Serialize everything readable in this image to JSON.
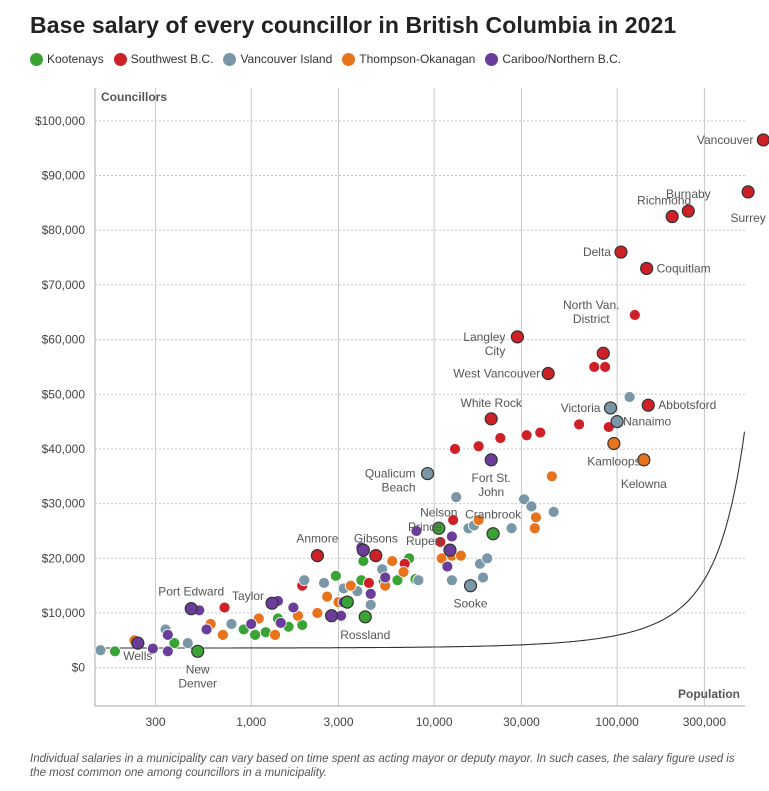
{
  "title": "Base salary of every councillor in British Columbia in 2021",
  "footnote": "Individual salaries in a municipality can vary based on time spent as acting mayor or deputy mayor. In such cases, the salary figure used is the most common one among councillors in a municipality.",
  "legend": [
    {
      "name": "Kootenays",
      "color": "#3aa335"
    },
    {
      "name": "Southwest B.C.",
      "color": "#cf2027"
    },
    {
      "name": "Vancouver Island",
      "color": "#7a97a8"
    },
    {
      "name": "Thompson-Okanagan",
      "color": "#e8731d"
    },
    {
      "name": "Cariboo/Northern B.C.",
      "color": "#6a3d9a"
    }
  ],
  "chart_data": {
    "type": "scatter",
    "title": "Base salary of every councillor in British Columbia in 2021",
    "xlabel": "Population",
    "ylabel": "Councillors",
    "xscale": "log",
    "xlim": [
      140,
      500000
    ],
    "ylim": [
      -7000,
      106000
    ],
    "xticks": [
      300,
      1000,
      3000,
      10000,
      30000,
      100000,
      300000
    ],
    "xtick_labels": [
      "300",
      "1,000",
      "3,000",
      "10,000",
      "30,000",
      "100,000",
      "300,000"
    ],
    "yticks": [
      0,
      10000,
      20000,
      30000,
      40000,
      50000,
      60000,
      70000,
      80000,
      90000,
      100000
    ],
    "ytick_labels": [
      "$0",
      "$10,000",
      "$20,000",
      "$30,000",
      "$40,000",
      "$50,000",
      "$60,000",
      "$70,000",
      "$80,000",
      "$90,000",
      "$100,000"
    ],
    "grid": true,
    "legend_position": "top",
    "series_keys": [
      "Kootenays",
      "Southwest B.C.",
      "Vancouver Island",
      "Thompson-Okanagan",
      "Cariboo/Northern B.C."
    ],
    "points": [
      {
        "r": 4,
        "x": 2750,
        "y": 9500,
        "k": 1
      },
      {
        "r": 4,
        "x": 4100,
        "y": 21500,
        "k": 1
      },
      {
        "r": 0,
        "x": 3350,
        "y": 12000,
        "k": 1
      },
      {
        "r": 0,
        "x": 380,
        "y": 4500,
        "k": 0
      },
      {
        "r": 0,
        "x": 510,
        "y": 3000,
        "k": 1,
        "label": "New\nDenver"
      },
      {
        "r": 0,
        "x": 180,
        "y": 3000,
        "k": 0
      },
      {
        "r": 0,
        "x": 910,
        "y": 7000,
        "k": 0
      },
      {
        "r": 0,
        "x": 1050,
        "y": 6000,
        "k": 0
      },
      {
        "r": 0,
        "x": 1200,
        "y": 6500,
        "k": 0
      },
      {
        "r": 0,
        "x": 1400,
        "y": 9000,
        "k": 0
      },
      {
        "r": 0,
        "x": 1600,
        "y": 7500,
        "k": 0
      },
      {
        "r": 0,
        "x": 1900,
        "y": 7800,
        "k": 0
      },
      {
        "r": 0,
        "x": 2900,
        "y": 16800,
        "k": 0
      },
      {
        "r": 0,
        "x": 4000,
        "y": 16000,
        "k": 0
      },
      {
        "r": 0,
        "x": 4100,
        "y": 19500,
        "k": 0
      },
      {
        "r": 0,
        "x": 4200,
        "y": 9300,
        "k": 1,
        "label": "Rossland"
      },
      {
        "r": 0,
        "x": 4800,
        "y": 20500,
        "k": 0
      },
      {
        "r": 0,
        "x": 5300,
        "y": 15800,
        "k": 0
      },
      {
        "r": 0,
        "x": 6300,
        "y": 16000,
        "k": 0
      },
      {
        "r": 0,
        "x": 7300,
        "y": 20000,
        "k": 0
      },
      {
        "r": 0,
        "x": 7900,
        "y": 16200,
        "k": 0
      },
      {
        "r": 0,
        "x": 10600,
        "y": 25500,
        "k": 1,
        "label": "Nelson"
      },
      {
        "r": 0,
        "x": 21000,
        "y": 24500,
        "k": 1,
        "label": "Cranbrook"
      },
      {
        "r": 1,
        "x": 715,
        "y": 11000,
        "k": 0
      },
      {
        "r": 1,
        "x": 1900,
        "y": 15000,
        "k": 0
      },
      {
        "r": 1,
        "x": 2300,
        "y": 20500,
        "k": 1,
        "label": "Anmore"
      },
      {
        "r": 1,
        "x": 4400,
        "y": 15500,
        "k": 0
      },
      {
        "r": 1,
        "x": 4800,
        "y": 20500,
        "k": 1,
        "label": "Gibsons"
      },
      {
        "r": 1,
        "x": 6900,
        "y": 19000,
        "k": 0
      },
      {
        "r": 1,
        "x": 10800,
        "y": 23000,
        "k": 0
      },
      {
        "r": 1,
        "x": 12700,
        "y": 27000,
        "k": 0
      },
      {
        "r": 1,
        "x": 13000,
        "y": 40000,
        "k": 0
      },
      {
        "r": 1,
        "x": 17500,
        "y": 40500,
        "k": 0
      },
      {
        "r": 1,
        "x": 20500,
        "y": 45500,
        "k": 1,
        "label": "White Rock"
      },
      {
        "r": 1,
        "x": 23000,
        "y": 42000,
        "k": 0
      },
      {
        "r": 1,
        "x": 28500,
        "y": 60500,
        "k": 1,
        "label": "Langley\nCity"
      },
      {
        "r": 1,
        "x": 32000,
        "y": 42500,
        "k": 0
      },
      {
        "r": 1,
        "x": 38000,
        "y": 43000,
        "k": 0
      },
      {
        "r": 1,
        "x": 42000,
        "y": 53800,
        "k": 1,
        "label": "West Vancouver"
      },
      {
        "r": 1,
        "x": 62000,
        "y": 44500,
        "k": 0
      },
      {
        "r": 1,
        "x": 75000,
        "y": 55000,
        "k": 0
      },
      {
        "r": 1,
        "x": 84000,
        "y": 57500,
        "k": 1,
        "label": "North Van.\nDistrict"
      },
      {
        "r": 1,
        "x": 86000,
        "y": 55000,
        "k": 0
      },
      {
        "r": 1,
        "x": 90000,
        "y": 44000,
        "k": 0
      },
      {
        "r": 1,
        "x": 105000,
        "y": 76000,
        "k": 1,
        "label": "Delta"
      },
      {
        "r": 1,
        "x": 125000,
        "y": 64500,
        "k": 0
      },
      {
        "r": 1,
        "x": 145000,
        "y": 73000,
        "k": 1,
        "label": "Coquitlam"
      },
      {
        "r": 1,
        "x": 148000,
        "y": 48000,
        "k": 1,
        "label": "Abbotsford"
      },
      {
        "r": 1,
        "x": 200000,
        "y": 82500,
        "k": 1,
        "label": "Richmond"
      },
      {
        "r": 1,
        "x": 245000,
        "y": 83500,
        "k": 1,
        "label": "Burnaby"
      },
      {
        "r": 1,
        "x": 520000,
        "y": 87000,
        "k": 1,
        "label": "Surrey"
      },
      {
        "r": 1,
        "x": 630000,
        "y": 96500,
        "k": 1,
        "label": "Vancouver"
      },
      {
        "r": 2,
        "x": 150,
        "y": 3200,
        "k": 0
      },
      {
        "r": 2,
        "x": 340,
        "y": 7000,
        "k": 0
      },
      {
        "r": 2,
        "x": 450,
        "y": 4500,
        "k": 0
      },
      {
        "r": 2,
        "x": 780,
        "y": 8000,
        "k": 0
      },
      {
        "r": 2,
        "x": 1950,
        "y": 16000,
        "k": 0
      },
      {
        "r": 2,
        "x": 2500,
        "y": 15500,
        "k": 0
      },
      {
        "r": 2,
        "x": 3200,
        "y": 14500,
        "k": 0
      },
      {
        "r": 2,
        "x": 3800,
        "y": 14000,
        "k": 0
      },
      {
        "r": 2,
        "x": 4500,
        "y": 11500,
        "k": 0
      },
      {
        "r": 2,
        "x": 5200,
        "y": 18000,
        "k": 0
      },
      {
        "r": 2,
        "x": 8200,
        "y": 16000,
        "k": 0
      },
      {
        "r": 2,
        "x": 9200,
        "y": 35500,
        "k": 1,
        "label": "Qualicum\nBeach"
      },
      {
        "r": 2,
        "x": 12500,
        "y": 16000,
        "k": 0
      },
      {
        "r": 2,
        "x": 13200,
        "y": 31200,
        "k": 0
      },
      {
        "r": 2,
        "x": 15400,
        "y": 25500,
        "k": 0
      },
      {
        "r": 2,
        "x": 15800,
        "y": 15000,
        "k": 1,
        "label": "Sooke"
      },
      {
        "r": 2,
        "x": 16500,
        "y": 26000,
        "k": 0
      },
      {
        "r": 2,
        "x": 17800,
        "y": 19000,
        "k": 0
      },
      {
        "r": 2,
        "x": 18500,
        "y": 16500,
        "k": 0
      },
      {
        "r": 2,
        "x": 19500,
        "y": 20000,
        "k": 0
      },
      {
        "r": 2,
        "x": 26500,
        "y": 25500,
        "k": 0
      },
      {
        "r": 2,
        "x": 31000,
        "y": 30800,
        "k": 0
      },
      {
        "r": 2,
        "x": 34000,
        "y": 29500,
        "k": 0
      },
      {
        "r": 2,
        "x": 45000,
        "y": 28500,
        "k": 0
      },
      {
        "r": 2,
        "x": 92000,
        "y": 47500,
        "k": 1,
        "label": "Victoria"
      },
      {
        "r": 2,
        "x": 100000,
        "y": 45000,
        "k": 1,
        "label": "Nanaimo"
      },
      {
        "r": 2,
        "x": 117000,
        "y": 49500,
        "k": 0
      },
      {
        "r": 3,
        "x": 230,
        "y": 5000,
        "k": 0
      },
      {
        "r": 3,
        "x": 600,
        "y": 8000,
        "k": 0
      },
      {
        "r": 3,
        "x": 700,
        "y": 6000,
        "k": 0
      },
      {
        "r": 3,
        "x": 1100,
        "y": 9000,
        "k": 0
      },
      {
        "r": 3,
        "x": 1350,
        "y": 6000,
        "k": 0
      },
      {
        "r": 3,
        "x": 1800,
        "y": 9500,
        "k": 0
      },
      {
        "r": 3,
        "x": 2300,
        "y": 10000,
        "k": 0
      },
      {
        "r": 3,
        "x": 2600,
        "y": 13000,
        "k": 0
      },
      {
        "r": 3,
        "x": 3000,
        "y": 12000,
        "k": 0
      },
      {
        "r": 3,
        "x": 3500,
        "y": 15000,
        "k": 0
      },
      {
        "r": 3,
        "x": 5400,
        "y": 15000,
        "k": 0
      },
      {
        "r": 3,
        "x": 5900,
        "y": 19500,
        "k": 0
      },
      {
        "r": 3,
        "x": 6800,
        "y": 17500,
        "k": 0
      },
      {
        "r": 3,
        "x": 11000,
        "y": 20000,
        "k": 0
      },
      {
        "r": 3,
        "x": 12500,
        "y": 20500,
        "k": 0
      },
      {
        "r": 3,
        "x": 14000,
        "y": 20500,
        "k": 0
      },
      {
        "r": 3,
        "x": 17500,
        "y": 27000,
        "k": 0
      },
      {
        "r": 3,
        "x": 36000,
        "y": 27500,
        "k": 0
      },
      {
        "r": 3,
        "x": 35500,
        "y": 25500,
        "k": 0
      },
      {
        "r": 3,
        "x": 44000,
        "y": 35000,
        "k": 0
      },
      {
        "r": 3,
        "x": 96000,
        "y": 41000,
        "k": 1,
        "label": "Kamloops"
      },
      {
        "r": 3,
        "x": 140000,
        "y": 38000,
        "k": 1,
        "label": "Kelowna"
      },
      {
        "r": 4,
        "x": 240,
        "y": 4500,
        "k": 1,
        "label": "Wells"
      },
      {
        "r": 4,
        "x": 290,
        "y": 3500,
        "k": 0
      },
      {
        "r": 4,
        "x": 350,
        "y": 6000,
        "k": 0
      },
      {
        "r": 4,
        "x": 350,
        "y": 3000,
        "k": 0
      },
      {
        "r": 4,
        "x": 470,
        "y": 10800,
        "k": 1,
        "label": "Port Edward"
      },
      {
        "r": 4,
        "x": 520,
        "y": 10500,
        "k": 0
      },
      {
        "r": 4,
        "x": 570,
        "y": 7000,
        "k": 0
      },
      {
        "r": 4,
        "x": 1000,
        "y": 8000,
        "k": 0
      },
      {
        "r": 4,
        "x": 1300,
        "y": 11800,
        "k": 1,
        "label": "Taylor"
      },
      {
        "r": 4,
        "x": 1400,
        "y": 12200,
        "k": 0
      },
      {
        "r": 4,
        "x": 1450,
        "y": 8200,
        "k": 0
      },
      {
        "r": 4,
        "x": 1700,
        "y": 11000,
        "k": 0
      },
      {
        "r": 4,
        "x": 3100,
        "y": 9500,
        "k": 0
      },
      {
        "r": 4,
        "x": 3200,
        "y": 12000,
        "k": 0
      },
      {
        "r": 4,
        "x": 4000,
        "y": 22000,
        "k": 0
      },
      {
        "r": 4,
        "x": 4500,
        "y": 13500,
        "k": 0
      },
      {
        "r": 4,
        "x": 5400,
        "y": 16500,
        "k": 0
      },
      {
        "r": 4,
        "x": 8000,
        "y": 25000,
        "k": 0
      },
      {
        "r": 4,
        "x": 11800,
        "y": 18500,
        "k": 0
      },
      {
        "r": 4,
        "x": 12200,
        "y": 21500,
        "k": 1,
        "label": "Prince\nRupert"
      },
      {
        "r": 4,
        "x": 12500,
        "y": 24000,
        "k": 0
      },
      {
        "r": 4,
        "x": 20500,
        "y": 38000,
        "k": 1,
        "label": "Fort St.\nJohn"
      }
    ],
    "fit_line": "exponential trend line"
  }
}
